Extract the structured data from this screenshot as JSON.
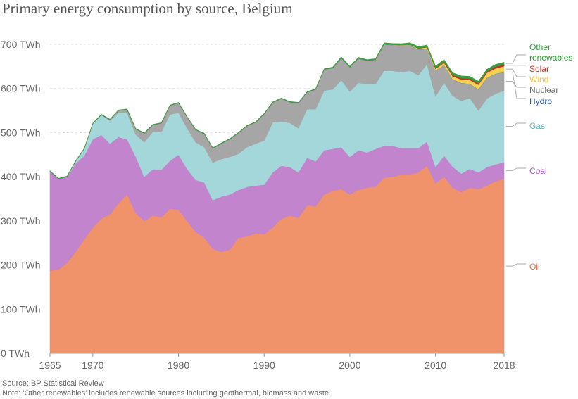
{
  "title": "Primary energy consumption by source, Belgium",
  "source": "Source: BP Statistical Review",
  "note": "Note: 'Other renewables' includes renewable sources including geothermal, biomass and waste.",
  "chart_data": {
    "type": "area",
    "stacked": true,
    "title": "Primary energy consumption by source, Belgium",
    "ylabel": "",
    "xlabel": "",
    "ylim": [
      0,
      700
    ],
    "xlim": [
      1965,
      2018
    ],
    "grid": true,
    "y_ticks": [
      {
        "value": 0,
        "label": "0 TWh"
      },
      {
        "value": 100,
        "label": "100 TWh"
      },
      {
        "value": 200,
        "label": "200 TWh"
      },
      {
        "value": 300,
        "label": "300 TWh"
      },
      {
        "value": 400,
        "label": "400 TWh"
      },
      {
        "value": 500,
        "label": "500 TWh"
      },
      {
        "value": 600,
        "label": "600 TWh"
      },
      {
        "value": 700,
        "label": "700 TWh"
      }
    ],
    "x_ticks": [
      {
        "value": 1965,
        "label": "1965"
      },
      {
        "value": 1970,
        "label": "1970"
      },
      {
        "value": 1980,
        "label": "1980"
      },
      {
        "value": 1990,
        "label": "1990"
      },
      {
        "value": 2000,
        "label": "2000"
      },
      {
        "value": 2010,
        "label": "2010"
      },
      {
        "value": 2018,
        "label": "2018"
      }
    ],
    "x": [
      1965,
      1966,
      1967,
      1968,
      1969,
      1970,
      1971,
      1972,
      1973,
      1974,
      1975,
      1976,
      1977,
      1978,
      1979,
      1980,
      1981,
      1982,
      1983,
      1984,
      1985,
      1986,
      1987,
      1988,
      1989,
      1990,
      1991,
      1992,
      1993,
      1994,
      1995,
      1996,
      1997,
      1998,
      1999,
      2000,
      2001,
      2002,
      2003,
      2004,
      2005,
      2006,
      2007,
      2008,
      2009,
      2010,
      2011,
      2012,
      2013,
      2014,
      2015,
      2016,
      2017,
      2018
    ],
    "series": [
      {
        "name": "Oil",
        "color": "#f0926a",
        "label_color": "#e06c3c",
        "values": [
          187,
          190,
          205,
          230,
          258,
          285,
          305,
          315,
          340,
          360,
          318,
          300,
          312,
          308,
          328,
          325,
          300,
          275,
          262,
          237,
          230,
          235,
          262,
          265,
          272,
          270,
          285,
          305,
          312,
          307,
          335,
          333,
          360,
          368,
          372,
          360,
          370,
          375,
          378,
          398,
          400,
          405,
          405,
          410,
          425,
          385,
          400,
          375,
          365,
          375,
          372,
          380,
          390,
          395
        ]
      },
      {
        "name": "Coal",
        "color": "#c184cd",
        "label_color": "#a74fc0",
        "values": [
          225,
          205,
          195,
          200,
          190,
          200,
          190,
          160,
          150,
          125,
          128,
          100,
          105,
          108,
          108,
          125,
          118,
          118,
          125,
          110,
          125,
          125,
          108,
          112,
          108,
          112,
          125,
          120,
          110,
          103,
          108,
          102,
          100,
          95,
          95,
          85,
          90,
          80,
          85,
          72,
          70,
          60,
          60,
          55,
          55,
          37,
          48,
          48,
          42,
          43,
          38,
          42,
          38,
          38
        ]
      },
      {
        "name": "Gas",
        "color": "#a3d7da",
        "label_color": "#54b7c0",
        "values": [
          0,
          0,
          0,
          5,
          15,
          35,
          45,
          52,
          55,
          60,
          50,
          78,
          85,
          85,
          105,
          95,
          92,
          85,
          80,
          85,
          85,
          85,
          82,
          90,
          95,
          100,
          113,
          100,
          100,
          100,
          110,
          118,
          135,
          135,
          152,
          148,
          153,
          155,
          147,
          170,
          170,
          172,
          175,
          165,
          175,
          160,
          165,
          160,
          165,
          160,
          140,
          155,
          160,
          162
        ]
      },
      {
        "name": "Nuclear",
        "color": "#a6a6a6",
        "label_color": "#6e6e6e",
        "values": [
          0,
          0,
          0,
          0,
          0,
          0,
          0,
          2,
          5,
          7,
          12,
          20,
          15,
          20,
          20,
          22,
          25,
          28,
          30,
          32,
          35,
          40,
          47,
          48,
          48,
          60,
          45,
          52,
          47,
          57,
          38,
          45,
          48,
          48,
          50,
          55,
          55,
          53,
          55,
          60,
          58,
          60,
          58,
          58,
          35,
          58,
          40,
          38,
          40,
          32,
          48,
          47,
          45,
          42
        ]
      },
      {
        "name": "Hydro",
        "color": "#3b6ab0",
        "label_color": "#2c5fa8",
        "values": [
          0.5,
          0.5,
          0.5,
          0.5,
          0.5,
          0.5,
          0.5,
          0.5,
          0.5,
          0.5,
          0.5,
          0.5,
          0.5,
          0.5,
          0.5,
          0.5,
          0.5,
          0.5,
          0.5,
          0.5,
          0.5,
          0.5,
          0.5,
          0.5,
          0.5,
          0.5,
          0.5,
          0.5,
          0.5,
          0.5,
          0.5,
          0.5,
          0.5,
          0.5,
          0.5,
          0.5,
          0.5,
          0.5,
          0.5,
          0.5,
          0.5,
          0.5,
          0.5,
          0.5,
          0.5,
          0.5,
          0.5,
          0.5,
          0.5,
          0.5,
          0.5,
          0.5,
          0.5,
          0.5
        ]
      },
      {
        "name": "Wind",
        "color": "#f6d14e",
        "label_color": "#f2c53d",
        "values": [
          0,
          0,
          0,
          0,
          0,
          0,
          0,
          0,
          0,
          0,
          0,
          0,
          0,
          0,
          0,
          0,
          0,
          0,
          0,
          0,
          0,
          0,
          0,
          0,
          0,
          0,
          0,
          0,
          0,
          0,
          0,
          0,
          0,
          0,
          0,
          0,
          0,
          0,
          0,
          0,
          0.5,
          1,
          1,
          2,
          3,
          4,
          5,
          6,
          8,
          9,
          10,
          11,
          12,
          13
        ]
      },
      {
        "name": "Solar",
        "color": "#c4302b",
        "label_color": "#c4302b",
        "values": [
          0,
          0,
          0,
          0,
          0,
          0,
          0,
          0,
          0,
          0,
          0,
          0,
          0,
          0,
          0,
          0,
          0,
          0,
          0,
          0,
          0,
          0,
          0,
          0,
          0,
          0,
          0,
          0,
          0,
          0,
          0,
          0,
          0,
          0,
          0,
          0,
          0,
          0,
          0,
          0,
          0,
          0,
          0,
          0.5,
          1,
          1.5,
          2,
          3,
          3,
          3,
          3,
          3,
          4,
          4
        ]
      },
      {
        "name": "Other renewables",
        "color": "#3a9e3f",
        "label_color": "#2f9a3a",
        "values": [
          1,
          1,
          1,
          1,
          1,
          1,
          1,
          1,
          1,
          1,
          1,
          1,
          1,
          1,
          1,
          1,
          1,
          1,
          1,
          1,
          1,
          1,
          1,
          1,
          1,
          1,
          1,
          1,
          1,
          1,
          1,
          1,
          1,
          2,
          2,
          2,
          2,
          2,
          2,
          3,
          3,
          3,
          4,
          4,
          4,
          5,
          5,
          5,
          5,
          5,
          5,
          5,
          5,
          5
        ]
      }
    ]
  }
}
